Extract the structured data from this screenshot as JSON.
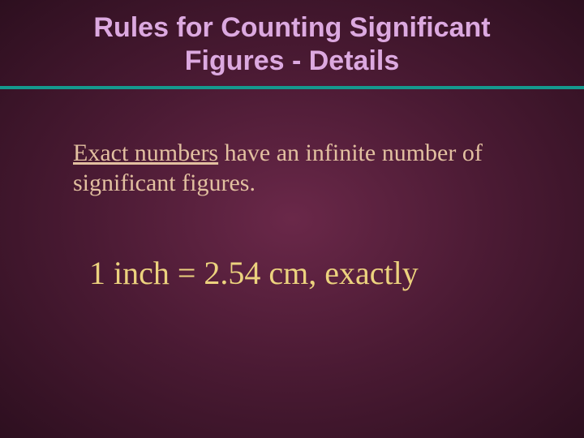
{
  "colors": {
    "title": "#dca9e0",
    "divider": "#149a8f",
    "body_text": "#e2c0a0",
    "example_text": "#ecd27e"
  },
  "typography": {
    "title_fontsize": 34,
    "title_fontweight": "bold",
    "title_fontfamily": "Arial",
    "body_fontsize": 30,
    "body_fontfamily": "Times New Roman",
    "example_fontsize": 40
  },
  "title": {
    "line1": "Rules for Counting Significant",
    "line2": "Figures - Details"
  },
  "body": {
    "underlined": "Exact numbers",
    "rest": " have an infinite number of significant figures."
  },
  "example": "1 inch  =  2.54 cm, exactly"
}
